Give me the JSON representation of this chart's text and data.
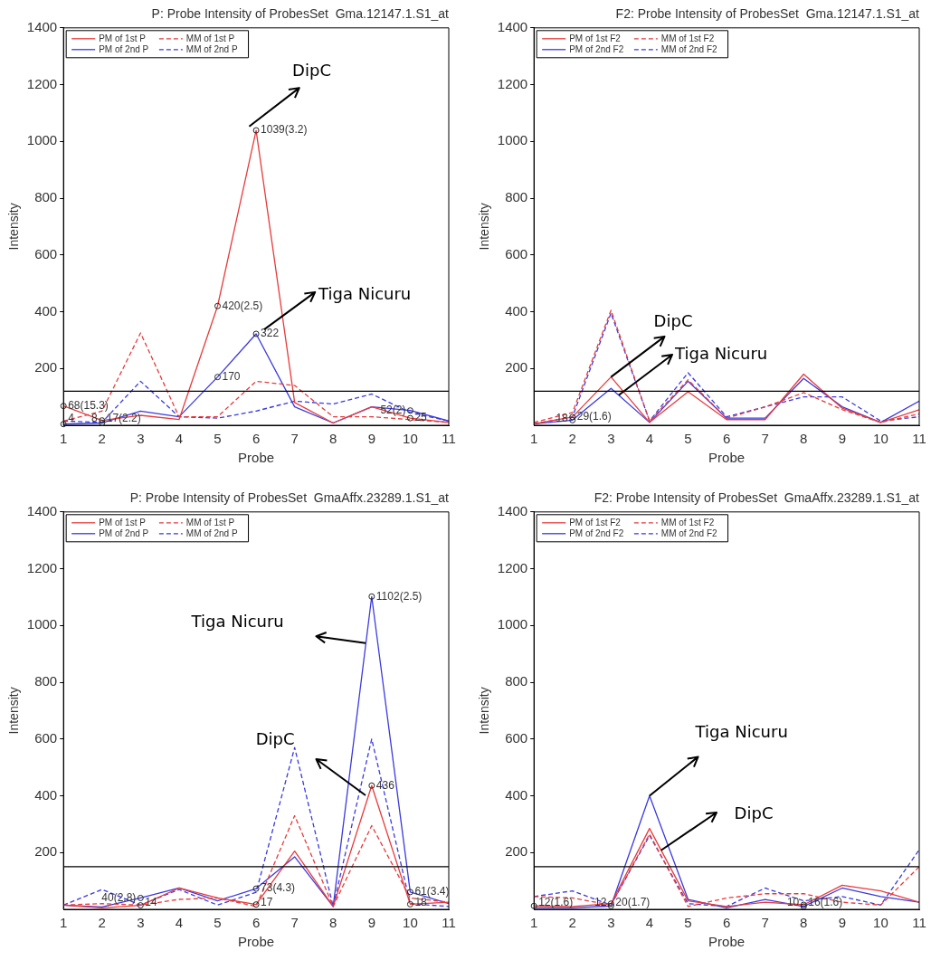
{
  "chart_data": [
    {
      "type": "line",
      "title": "P: Probe Intensity of ProbesSet  Gma.12147.1.S1_at",
      "xlabel": "Probe",
      "ylabel": "Intensity",
      "x": [
        1,
        2,
        3,
        4,
        5,
        6,
        7,
        8,
        9,
        10,
        11
      ],
      "xlim": [
        1,
        11
      ],
      "xticks": [
        1,
        2,
        3,
        4,
        5,
        6,
        7,
        8,
        9,
        10,
        11
      ],
      "ylim": [
        0,
        1400
      ],
      "yticks": [
        200,
        400,
        600,
        800,
        1000,
        1200,
        1400
      ],
      "legend": "top left",
      "marker": "none",
      "series": [
        {
          "name": "PM of 1st P",
          "color": "#e83a3a",
          "line_style": "solid",
          "values": [
            68,
            17,
            35,
            20,
            420,
            1039,
            80,
            8,
            65,
            25,
            10
          ],
          "value_labels": [
            "68(15.3)",
            "17(2.2)",
            null,
            null,
            "420(2.5)",
            "1039(3.2)",
            null,
            null,
            null,
            "25",
            null
          ]
        },
        {
          "name": "MM of 1st P",
          "color": "#e83a3a",
          "line_style": "dashed",
          "values": [
            15,
            50,
            325,
            30,
            30,
            155,
            140,
            30,
            30,
            20,
            10
          ]
        },
        {
          "name": "PM of 2nd P",
          "color": "#3a3ae0",
          "line_style": "solid",
          "values": [
            4,
            8,
            50,
            30,
            170,
            322,
            65,
            8,
            65,
            52,
            15
          ],
          "value_labels": [
            "4",
            "8",
            null,
            null,
            "170",
            "322",
            null,
            null,
            null,
            "52(2)",
            null
          ]
        },
        {
          "name": "MM of 2nd P",
          "color": "#3a3ae0",
          "line_style": "dashed",
          "values": [
            15,
            10,
            155,
            30,
            25,
            50,
            85,
            75,
            110,
            45,
            15
          ]
        }
      ],
      "ref_lines": [
        {
          "axis": "y",
          "value": 120,
          "color": "#000000"
        }
      ],
      "annotations": [
        "DipC",
        "Tiga Nicuru"
      ]
    },
    {
      "type": "line",
      "title": "F2: Probe Intensity of ProbesSet  Gma.12147.1.S1_at",
      "xlabel": "Probe",
      "ylabel": "Intensity",
      "x": [
        1,
        2,
        3,
        4,
        5,
        6,
        7,
        8,
        9,
        10,
        11
      ],
      "xlim": [
        1,
        11
      ],
      "xticks": [
        1,
        2,
        3,
        4,
        5,
        6,
        7,
        8,
        9,
        10,
        11
      ],
      "ylim": [
        0,
        1400
      ],
      "yticks": [
        200,
        400,
        600,
        800,
        1000,
        1200,
        1400
      ],
      "legend": "top left",
      "marker": "none",
      "series": [
        {
          "name": "PM of 1st F2",
          "color": "#e83a3a",
          "line_style": "solid",
          "values": [
            5,
            29,
            170,
            10,
            118,
            20,
            20,
            180,
            60,
            10,
            55
          ],
          "value_labels": [
            null,
            "29(1.6)",
            null,
            null,
            null,
            null,
            null,
            null,
            null,
            null,
            null
          ]
        },
        {
          "name": "MM of 1st F2",
          "color": "#e83a3a",
          "line_style": "dashed",
          "values": [
            10,
            45,
            405,
            15,
            160,
            25,
            65,
            115,
            55,
            10,
            40
          ]
        },
        {
          "name": "PM of 2nd F2",
          "color": "#3a3ae0",
          "line_style": "solid",
          "values": [
            5,
            18,
            130,
            10,
            155,
            25,
            25,
            165,
            65,
            10,
            85
          ],
          "value_labels": [
            null,
            "18",
            null,
            null,
            null,
            null,
            null,
            null,
            null,
            null,
            null
          ]
        },
        {
          "name": "MM of 2nd F2",
          "color": "#3a3ae0",
          "line_style": "dashed",
          "values": [
            5,
            30,
            395,
            15,
            185,
            30,
            65,
            100,
            100,
            15,
            30
          ]
        }
      ],
      "ref_lines": [
        {
          "axis": "y",
          "value": 120,
          "color": "#000000"
        }
      ],
      "annotations": [
        {
          "text": "DipC",
          "x": 3,
          "y": 170
        },
        {
          "text": "Tiga Nicuru",
          "x": 3.2,
          "y": 106
        }
      ]
    },
    {
      "type": "line",
      "title": "P: Probe Intensity of ProbesSet  GmaAffx.23289.1.S1_at",
      "xlabel": "Probe",
      "ylabel": "Intensity",
      "x": [
        1,
        2,
        3,
        4,
        5,
        6,
        7,
        8,
        9,
        10,
        11
      ],
      "xlim": [
        1,
        11
      ],
      "xticks": [
        1,
        2,
        3,
        4,
        5,
        6,
        7,
        8,
        9,
        10,
        11
      ],
      "ylim": [
        0,
        1400
      ],
      "yticks": [
        200,
        400,
        600,
        800,
        1000,
        1200,
        1400
      ],
      "legend": "top left",
      "marker": "none",
      "series": [
        {
          "name": "PM of 1st P",
          "color": "#e83a3a",
          "line_style": "solid",
          "values": [
            15,
            5,
            14,
            75,
            40,
            17,
            205,
            10,
            436,
            18,
            25
          ],
          "value_labels": [
            null,
            null,
            "14",
            null,
            null,
            "17",
            null,
            null,
            "436",
            "18",
            null
          ]
        },
        {
          "name": "MM of 1st P",
          "color": "#e83a3a",
          "line_style": "dashed",
          "values": [
            15,
            20,
            15,
            35,
            40,
            10,
            330,
            10,
            295,
            40,
            25
          ]
        },
        {
          "name": "PM of 2nd P",
          "color": "#3a3ae0",
          "line_style": "solid",
          "values": [
            15,
            8,
            40,
            75,
            30,
            73,
            185,
            10,
            1102,
            61,
            20
          ],
          "value_labels": [
            null,
            null,
            "40(2.8)",
            null,
            null,
            "73(4.3)",
            null,
            null,
            "1102(2.5)",
            "61(3.4)",
            null
          ]
        },
        {
          "name": "MM of 2nd P",
          "color": "#3a3ae0",
          "line_style": "dashed",
          "values": [
            15,
            70,
            15,
            70,
            15,
            60,
            570,
            10,
            600,
            20,
            10
          ]
        }
      ],
      "ref_lines": [
        {
          "axis": "y",
          "value": 150,
          "color": "#000000"
        }
      ],
      "annotations": [
        "Tiga Nicuru",
        "DipC"
      ]
    },
    {
      "type": "line",
      "title": "F2: Probe Intensity of ProbesSet  GmaAffx.23289.1.S1_at",
      "xlabel": "Probe",
      "ylabel": "Intensity",
      "x": [
        1,
        2,
        3,
        4,
        5,
        6,
        7,
        8,
        9,
        10,
        11
      ],
      "xlim": [
        1,
        11
      ],
      "xticks": [
        1,
        2,
        3,
        4,
        5,
        6,
        7,
        8,
        9,
        10,
        11
      ],
      "ylim": [
        0,
        1400
      ],
      "yticks": [
        200,
        400,
        600,
        800,
        1000,
        1200,
        1400
      ],
      "legend": "top left",
      "marker": "none",
      "series": [
        {
          "name": "PM of 1st F2",
          "color": "#e83a3a",
          "line_style": "solid",
          "values": [
            12,
            10,
            20,
            285,
            30,
            10,
            25,
            16,
            85,
            65,
            25
          ],
          "value_labels": [
            "12(1.6)",
            null,
            "20(1.7)",
            null,
            null,
            null,
            null,
            "16(1.6)",
            null,
            null,
            null
          ]
        },
        {
          "name": "MM of 1st F2",
          "color": "#e83a3a",
          "line_style": "dashed",
          "values": [
            45,
            40,
            15,
            265,
            10,
            40,
            55,
            55,
            25,
            15,
            150
          ]
        },
        {
          "name": "PM of 2nd F2",
          "color": "#3a3ae0",
          "line_style": "solid",
          "values": [
            5,
            5,
            12,
            400,
            35,
            5,
            35,
            10,
            75,
            45,
            25
          ],
          "value_labels": [
            null,
            null,
            "12",
            null,
            null,
            null,
            null,
            "10",
            null,
            null,
            null
          ]
        },
        {
          "name": "MM of 2nd F2",
          "color": "#3a3ae0",
          "line_style": "dashed",
          "values": [
            45,
            65,
            15,
            260,
            20,
            10,
            75,
            30,
            45,
            15,
            210
          ]
        }
      ],
      "ref_lines": [
        {
          "axis": "y",
          "value": 150,
          "color": "#000000"
        }
      ],
      "annotations": [
        {
          "text": "Tiga Nicuru",
          "x": 4,
          "y": 400
        },
        {
          "text": "DipC",
          "x": 4.3,
          "y": 208
        }
      ]
    }
  ]
}
